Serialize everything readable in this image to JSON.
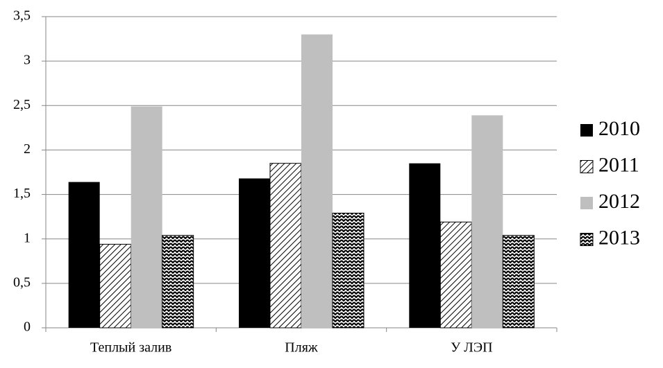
{
  "chart_data": {
    "type": "bar",
    "categories": [
      "Теплый залив",
      "Пляж",
      "У ЛЭП"
    ],
    "series": [
      {
        "name": "2010",
        "color": "#000000",
        "pattern": "solid",
        "values": [
          1.64,
          1.68,
          1.85
        ]
      },
      {
        "name": "2011",
        "color": "#000000",
        "pattern": "hatch",
        "values": [
          0.94,
          1.85,
          1.19
        ]
      },
      {
        "name": "2012",
        "color": "#bfbfbf",
        "pattern": "solid",
        "values": [
          2.49,
          3.3,
          2.39
        ]
      },
      {
        "name": "2013",
        "color": "#000000",
        "pattern": "zigzag",
        "values": [
          1.04,
          1.29,
          1.04
        ]
      }
    ],
    "ylim": [
      0,
      3.5
    ],
    "yticks": [
      0,
      {
        "value": 0.5,
        "label": "0,5"
      },
      1,
      {
        "value": 1.5,
        "label": "1,5"
      },
      2,
      {
        "value": 2.5,
        "label": "2,5"
      },
      3,
      {
        "value": 3.5,
        "label": "3,5"
      }
    ],
    "grid": true,
    "legend": "right"
  }
}
